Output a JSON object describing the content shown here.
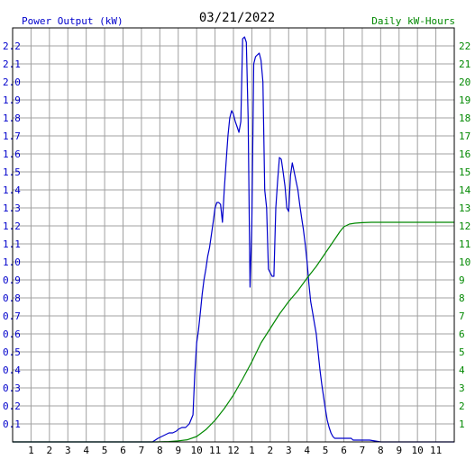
{
  "header": {
    "left_title": "Power Output (kW)",
    "date": "03/21/2022",
    "right_title": "Daily kW-Hours"
  },
  "colors": {
    "power": "#0000cc",
    "energy": "#008800",
    "grid": "#a0a0a0",
    "axis": "#000000"
  },
  "chart_data": {
    "type": "line",
    "title": "03/21/2022",
    "x_ticks": [
      "1",
      "2",
      "3",
      "4",
      "5",
      "6",
      "7",
      "8",
      "9",
      "10",
      "11",
      "12",
      "1",
      "2",
      "3",
      "4",
      "5",
      "6",
      "7",
      "8",
      "9",
      "10",
      "11"
    ],
    "xlim": [
      0,
      24
    ],
    "ylim_left": [
      0,
      2.3
    ],
    "ylim_right": [
      0,
      23
    ],
    "left_ticks": [
      "0.1",
      "0.2",
      "0.3",
      "0.4",
      "0.5",
      "0.6",
      "0.7",
      "0.8",
      "0.9",
      "1.0",
      "1.1",
      "1.2",
      "1.3",
      "1.4",
      "1.5",
      "1.6",
      "1.7",
      "1.8",
      "1.9",
      "2.0",
      "2.1",
      "2.2"
    ],
    "right_ticks": [
      "1",
      "2",
      "3",
      "4",
      "5",
      "6",
      "7",
      "8",
      "9",
      "10",
      "11",
      "12",
      "13",
      "14",
      "15",
      "16",
      "17",
      "18",
      "19",
      "20",
      "21",
      "22"
    ],
    "series": [
      {
        "name": "Power Output (kW)",
        "axis": "left",
        "x": [
          0,
          7.6,
          7.9,
          8.1,
          8.3,
          8.5,
          8.7,
          8.9,
          9.0,
          9.2,
          9.4,
          9.6,
          9.8,
          9.9,
          10.0,
          10.1,
          10.2,
          10.3,
          10.4,
          10.5,
          10.6,
          10.7,
          10.8,
          10.9,
          11.0,
          11.1,
          11.2,
          11.3,
          11.4,
          11.5,
          11.6,
          11.7,
          11.8,
          11.9,
          12.0,
          12.1,
          12.2,
          12.3,
          12.4,
          12.5,
          12.6,
          12.7,
          12.8,
          12.9,
          13.0,
          13.1,
          13.2,
          13.3,
          13.4,
          13.5,
          13.6,
          13.7,
          13.8,
          13.9,
          14.0,
          14.1,
          14.2,
          14.3,
          14.4,
          14.5,
          14.6,
          14.7,
          14.8,
          14.9,
          15.0,
          15.1,
          15.2,
          15.3,
          15.4,
          15.5,
          15.6,
          15.7,
          15.8,
          15.9,
          16.0,
          16.1,
          16.2,
          16.3,
          16.4,
          16.5,
          16.6,
          16.7,
          16.8,
          16.9,
          17.0,
          17.1,
          17.2,
          17.3,
          17.4,
          17.5,
          17.6,
          17.7,
          17.8,
          17.9,
          18.0,
          18.1,
          18.2,
          18.3,
          18.4,
          18.5,
          18.6,
          18.7,
          18.8,
          18.9,
          19.0,
          19.2,
          19.4,
          20.0,
          24.0
        ],
        "y": [
          0,
          0,
          0.02,
          0.03,
          0.04,
          0.05,
          0.05,
          0.06,
          0.07,
          0.08,
          0.08,
          0.1,
          0.15,
          0.38,
          0.55,
          0.62,
          0.72,
          0.82,
          0.9,
          0.96,
          1.03,
          1.08,
          1.15,
          1.22,
          1.3,
          1.33,
          1.33,
          1.32,
          1.22,
          1.4,
          1.55,
          1.7,
          1.8,
          1.84,
          1.82,
          1.78,
          1.75,
          1.72,
          1.78,
          2.24,
          2.25,
          2.22,
          1.8,
          0.86,
          1.2,
          2.1,
          2.14,
          2.15,
          2.16,
          2.12,
          2.0,
          1.4,
          1.3,
          0.96,
          0.94,
          0.92,
          0.92,
          1.3,
          1.45,
          1.58,
          1.57,
          1.5,
          1.42,
          1.3,
          1.28,
          1.48,
          1.55,
          1.5,
          1.45,
          1.4,
          1.32,
          1.25,
          1.18,
          1.1,
          1.0,
          0.88,
          0.78,
          0.72,
          0.66,
          0.6,
          0.5,
          0.4,
          0.32,
          0.25,
          0.18,
          0.12,
          0.08,
          0.05,
          0.03,
          0.02,
          0.02,
          0.02,
          0.02,
          0.02,
          0.02,
          0.02,
          0.02,
          0.02,
          0.02,
          0.01,
          0.01,
          0.01,
          0.01,
          0.01,
          0.01,
          0.01,
          0.01,
          0,
          0
        ]
      },
      {
        "name": "Daily kW-Hours",
        "axis": "right",
        "x": [
          0,
          7.8,
          8.5,
          9.0,
          9.5,
          10.0,
          10.5,
          11.0,
          11.5,
          12.0,
          12.5,
          13.0,
          13.5,
          14.0,
          14.5,
          15.0,
          15.5,
          16.0,
          16.5,
          17.0,
          17.5,
          17.8,
          18.0,
          18.3,
          18.6,
          19.0,
          19.5,
          20.0,
          21.0,
          24.0
        ],
        "y": [
          0,
          0,
          0.02,
          0.06,
          0.12,
          0.3,
          0.68,
          1.2,
          1.85,
          2.6,
          3.5,
          4.45,
          5.5,
          6.3,
          7.1,
          7.8,
          8.4,
          9.1,
          9.75,
          10.5,
          11.25,
          11.7,
          11.95,
          12.1,
          12.15,
          12.18,
          12.2,
          12.2,
          12.2,
          12.2
        ]
      }
    ]
  }
}
